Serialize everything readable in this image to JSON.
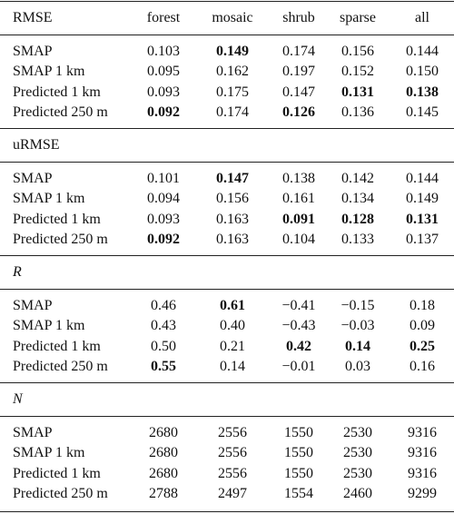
{
  "table": {
    "columns": [
      "forest",
      "mosaic",
      "shrub",
      "sparse",
      "all"
    ],
    "sections": [
      {
        "label": "RMSE",
        "rows": [
          {
            "label": "SMAP",
            "cells": [
              {
                "text": "0.103"
              },
              {
                "text": "0.149",
                "bold": true
              },
              {
                "text": "0.174"
              },
              {
                "text": "0.156"
              },
              {
                "text": "0.144"
              }
            ]
          },
          {
            "label": "SMAP 1 km",
            "cells": [
              {
                "text": "0.095"
              },
              {
                "text": "0.162"
              },
              {
                "text": "0.197"
              },
              {
                "text": "0.152"
              },
              {
                "text": "0.150"
              }
            ]
          },
          {
            "label": "Predicted 1 km",
            "cells": [
              {
                "text": "0.093"
              },
              {
                "text": "0.175"
              },
              {
                "text": "0.147"
              },
              {
                "text": "0.131",
                "bold": true
              },
              {
                "text": "0.138",
                "bold": true
              }
            ]
          },
          {
            "label": "Predicted 250 m",
            "cells": [
              {
                "text": "0.092",
                "bold": true
              },
              {
                "text": "0.174"
              },
              {
                "text": "0.126",
                "bold": true
              },
              {
                "text": "0.136"
              },
              {
                "text": "0.145"
              }
            ]
          }
        ]
      },
      {
        "label": "uRMSE",
        "rows": [
          {
            "label": "SMAP",
            "cells": [
              {
                "text": "0.101"
              },
              {
                "text": "0.147",
                "bold": true
              },
              {
                "text": "0.138"
              },
              {
                "text": "0.142"
              },
              {
                "text": "0.144"
              }
            ]
          },
          {
            "label": "SMAP 1 km",
            "cells": [
              {
                "text": "0.094"
              },
              {
                "text": "0.156"
              },
              {
                "text": "0.161"
              },
              {
                "text": "0.134"
              },
              {
                "text": "0.149"
              }
            ]
          },
          {
            "label": "Predicted 1 km",
            "cells": [
              {
                "text": "0.093"
              },
              {
                "text": "0.163"
              },
              {
                "text": "0.091",
                "bold": true
              },
              {
                "text": "0.128",
                "bold": true
              },
              {
                "text": "0.131",
                "bold": true
              }
            ]
          },
          {
            "label": "Predicted 250 m",
            "cells": [
              {
                "text": "0.092",
                "bold": true
              },
              {
                "text": "0.163"
              },
              {
                "text": "0.104"
              },
              {
                "text": "0.133"
              },
              {
                "text": "0.137"
              }
            ]
          }
        ]
      },
      {
        "label": "R",
        "italic": true,
        "rows": [
          {
            "label": "SMAP",
            "cells": [
              {
                "text": "0.46"
              },
              {
                "text": "0.61",
                "bold": true
              },
              {
                "text": "−0.41"
              },
              {
                "text": "−0.15"
              },
              {
                "text": "0.18"
              }
            ]
          },
          {
            "label": "SMAP 1 km",
            "cells": [
              {
                "text": "0.43"
              },
              {
                "text": "0.40"
              },
              {
                "text": "−0.43"
              },
              {
                "text": "−0.03"
              },
              {
                "text": "0.09"
              }
            ]
          },
          {
            "label": "Predicted 1 km",
            "cells": [
              {
                "text": "0.50"
              },
              {
                "text": "0.21"
              },
              {
                "text": "0.42",
                "bold": true
              },
              {
                "text": "0.14",
                "bold": true
              },
              {
                "text": "0.25",
                "bold": true
              }
            ]
          },
          {
            "label": "Predicted 250 m",
            "cells": [
              {
                "text": "0.55",
                "bold": true
              },
              {
                "text": "0.14"
              },
              {
                "text": "−0.01"
              },
              {
                "text": "0.03"
              },
              {
                "text": "0.16"
              }
            ]
          }
        ]
      },
      {
        "label": "N",
        "italic": true,
        "rows": [
          {
            "label": "SMAP",
            "cells": [
              {
                "text": "2680"
              },
              {
                "text": "2556"
              },
              {
                "text": "1550"
              },
              {
                "text": "2530"
              },
              {
                "text": "9316"
              }
            ]
          },
          {
            "label": "SMAP 1 km",
            "cells": [
              {
                "text": "2680"
              },
              {
                "text": "2556"
              },
              {
                "text": "1550"
              },
              {
                "text": "2530"
              },
              {
                "text": "9316"
              }
            ]
          },
          {
            "label": "Predicted 1 km",
            "cells": [
              {
                "text": "2680"
              },
              {
                "text": "2556"
              },
              {
                "text": "1550"
              },
              {
                "text": "2530"
              },
              {
                "text": "9316"
              }
            ]
          },
          {
            "label": "Predicted 250 m",
            "cells": [
              {
                "text": "2788"
              },
              {
                "text": "2497"
              },
              {
                "text": "1554"
              },
              {
                "text": "2460"
              },
              {
                "text": "9299"
              }
            ]
          }
        ]
      }
    ]
  }
}
